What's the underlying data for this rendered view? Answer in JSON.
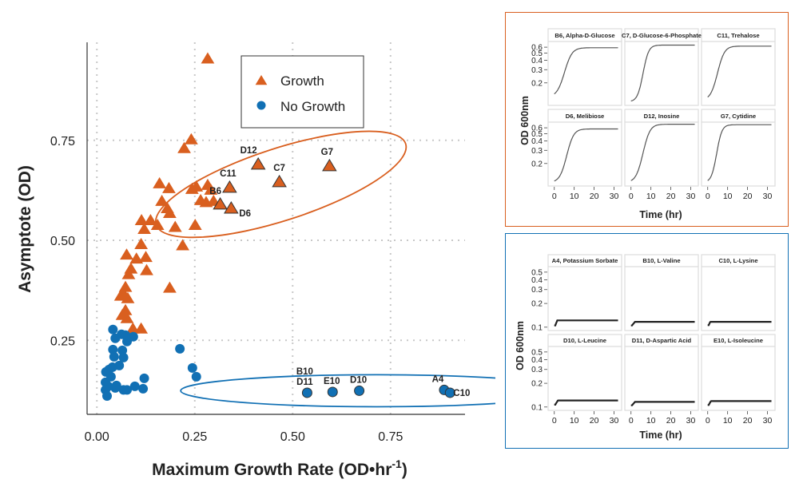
{
  "colors": {
    "growth": "#d95f1f",
    "no_growth": "#1170b4",
    "grid": "#c8c8c8",
    "axis": "#333333",
    "curve": "#555555",
    "panel_border": "#dddddd"
  },
  "chart_data": [
    {
      "type": "scatter",
      "title": "",
      "xlabel": "Maximum Growth Rate (OD•hr",
      "xlabel_superscript": "-1",
      "xlabel_suffix": ")",
      "ylabel": "Asymptote (OD)",
      "xlim": [
        -0.025,
        0.93
      ],
      "ylim": [
        0.065,
        0.995
      ],
      "xticks": [
        0.0,
        0.25,
        0.5,
        0.75
      ],
      "xtick_labels": [
        "0.00",
        "0.25",
        "0.50",
        "0.75"
      ],
      "yticks": [
        0.25,
        0.5,
        0.75
      ],
      "ytick_labels": [
        "0.25",
        "0.50",
        "0.75"
      ],
      "grid": true,
      "legend": {
        "placement": "top-center",
        "entries": [
          {
            "label": "Growth",
            "marker": "triangle",
            "series": "growth"
          },
          {
            "label": "No Growth",
            "marker": "circle",
            "series": "no_growth"
          }
        ]
      },
      "series": [
        {
          "name": "Growth",
          "key": "growth",
          "marker": "triangle",
          "points": [
            {
              "x": 0.283,
              "y": 0.954
            },
            {
              "x": 0.241,
              "y": 0.752
            },
            {
              "x": 0.223,
              "y": 0.73
            },
            {
              "x": 0.16,
              "y": 0.642
            },
            {
              "x": 0.184,
              "y": 0.63
            },
            {
              "x": 0.166,
              "y": 0.598
            },
            {
              "x": 0.18,
              "y": 0.58
            },
            {
              "x": 0.186,
              "y": 0.568
            },
            {
              "x": 0.2,
              "y": 0.533
            },
            {
              "x": 0.114,
              "y": 0.55
            },
            {
              "x": 0.137,
              "y": 0.55
            },
            {
              "x": 0.121,
              "y": 0.528
            },
            {
              "x": 0.155,
              "y": 0.538
            },
            {
              "x": 0.251,
              "y": 0.538
            },
            {
              "x": 0.219,
              "y": 0.487
            },
            {
              "x": 0.113,
              "y": 0.49
            },
            {
              "x": 0.076,
              "y": 0.464
            },
            {
              "x": 0.101,
              "y": 0.454
            },
            {
              "x": 0.125,
              "y": 0.458
            },
            {
              "x": 0.087,
              "y": 0.429
            },
            {
              "x": 0.081,
              "y": 0.415
            },
            {
              "x": 0.127,
              "y": 0.425
            },
            {
              "x": 0.186,
              "y": 0.381
            },
            {
              "x": 0.073,
              "y": 0.383
            },
            {
              "x": 0.068,
              "y": 0.367
            },
            {
              "x": 0.079,
              "y": 0.355
            },
            {
              "x": 0.061,
              "y": 0.361
            },
            {
              "x": 0.073,
              "y": 0.325
            },
            {
              "x": 0.065,
              "y": 0.313
            },
            {
              "x": 0.077,
              "y": 0.305
            },
            {
              "x": 0.092,
              "y": 0.279
            },
            {
              "x": 0.113,
              "y": 0.279
            },
            {
              "x": 0.243,
              "y": 0.628
            },
            {
              "x": 0.254,
              "y": 0.634
            },
            {
              "x": 0.283,
              "y": 0.638
            },
            {
              "x": 0.291,
              "y": 0.626
            },
            {
              "x": 0.279,
              "y": 0.595
            },
            {
              "x": 0.298,
              "y": 0.598
            },
            {
              "x": 0.265,
              "y": 0.6
            },
            {
              "x": 0.412,
              "y": 0.69,
              "label": "D12"
            },
            {
              "x": 0.594,
              "y": 0.686,
              "label": "G7"
            },
            {
              "x": 0.466,
              "y": 0.646,
              "label": "C7"
            },
            {
              "x": 0.339,
              "y": 0.632,
              "label": "C11"
            },
            {
              "x": 0.315,
              "y": 0.59,
              "label": "B6"
            },
            {
              "x": 0.343,
              "y": 0.58,
              "label": "D6"
            }
          ]
        },
        {
          "name": "No Growth",
          "key": "no_growth",
          "marker": "circle",
          "points": [
            {
              "x": 0.212,
              "y": 0.229
            },
            {
              "x": 0.244,
              "y": 0.181
            },
            {
              "x": 0.254,
              "y": 0.159
            },
            {
              "x": 0.121,
              "y": 0.155
            },
            {
              "x": 0.118,
              "y": 0.129
            },
            {
              "x": 0.097,
              "y": 0.135
            },
            {
              "x": 0.077,
              "y": 0.126
            },
            {
              "x": 0.068,
              "y": 0.126
            },
            {
              "x": 0.047,
              "y": 0.131
            },
            {
              "x": 0.041,
              "y": 0.277
            },
            {
              "x": 0.063,
              "y": 0.265
            },
            {
              "x": 0.047,
              "y": 0.255
            },
            {
              "x": 0.077,
              "y": 0.247
            },
            {
              "x": 0.093,
              "y": 0.259
            },
            {
              "x": 0.073,
              "y": 0.263
            },
            {
              "x": 0.041,
              "y": 0.227
            },
            {
              "x": 0.065,
              "y": 0.225
            },
            {
              "x": 0.044,
              "y": 0.209
            },
            {
              "x": 0.068,
              "y": 0.207
            },
            {
              "x": 0.057,
              "y": 0.187
            },
            {
              "x": 0.04,
              "y": 0.183
            },
            {
              "x": 0.023,
              "y": 0.171
            },
            {
              "x": 0.036,
              "y": 0.159
            },
            {
              "x": 0.022,
              "y": 0.145
            },
            {
              "x": 0.029,
              "y": 0.135
            },
            {
              "x": 0.022,
              "y": 0.126
            },
            {
              "x": 0.026,
              "y": 0.111
            },
            {
              "x": 0.05,
              "y": 0.137
            },
            {
              "x": 0.031,
              "y": 0.177
            },
            {
              "x": 0.537,
              "y": 0.119,
              "label": "D11",
              "label2": "B10"
            },
            {
              "x": 0.602,
              "y": 0.121,
              "label": "E10"
            },
            {
              "x": 0.67,
              "y": 0.124,
              "label": "D10"
            },
            {
              "x": 0.887,
              "y": 0.126,
              "label": "A4"
            },
            {
              "x": 0.902,
              "y": 0.119,
              "label": "C10"
            }
          ]
        }
      ],
      "annotations": [
        {
          "type": "ellipse",
          "series": "growth",
          "cx": 0.47,
          "cy": 0.64,
          "rx": 0.335,
          "ry": 0.09,
          "angle_deg": -18
        },
        {
          "type": "ellipse",
          "series": "no_growth",
          "cx": 0.714,
          "cy": 0.124,
          "rx": 0.5,
          "ry": 0.04,
          "angle_deg": 0
        }
      ]
    },
    {
      "type": "line",
      "group": "growth",
      "title": "",
      "xlabel": "Time (hr)",
      "ylabel": "OD 600nm",
      "yscale": "log",
      "xlim": [
        -1.5,
        33
      ],
      "ylim": [
        0.105,
        0.68
      ],
      "xticks": [
        0,
        10,
        20,
        30
      ],
      "yticks": [
        0.2,
        0.3,
        0.4,
        0.5,
        0.6
      ],
      "ytick_labels": [
        "0.2",
        "0.3",
        "0.4",
        "0.5",
        "0.6"
      ],
      "panels": [
        {
          "title": "B6, Alpha-D-Glucose",
          "model": "logistic",
          "start": 0.13,
          "plateau": 0.59,
          "midpoint": 6.5,
          "rate": 0.55
        },
        {
          "title": "C7, D-Glucose-6-Phosphate",
          "model": "logistic",
          "start": 0.112,
          "plateau": 0.64,
          "midpoint": 7.2,
          "rate": 0.75
        },
        {
          "title": "C11, Trehalose",
          "model": "logistic",
          "start": 0.118,
          "plateau": 0.62,
          "midpoint": 6.3,
          "rate": 0.6
        },
        {
          "title": "D6, Melibiose",
          "model": "logistic",
          "start": 0.112,
          "plateau": 0.58,
          "midpoint": 7.6,
          "rate": 0.6
        },
        {
          "title": "D12, Inosine",
          "model": "logistic",
          "start": 0.112,
          "plateau": 0.67,
          "midpoint": 7.5,
          "rate": 0.6
        },
        {
          "title": "G7, Cytidine",
          "model": "logistic",
          "start": 0.112,
          "plateau": 0.66,
          "midpoint": 5.6,
          "rate": 0.8
        }
      ]
    },
    {
      "type": "line",
      "group": "no_growth",
      "title": "",
      "xlabel": "Time (hr)",
      "ylabel": "OD 600nm",
      "yscale": "log",
      "xlim": [
        -1.5,
        33
      ],
      "ylim": [
        0.095,
        0.56
      ],
      "xticks": [
        0,
        10,
        20,
        30
      ],
      "yticks": [
        0.1,
        0.2,
        0.3,
        0.4,
        0.5
      ],
      "ytick_labels": [
        "0.1",
        "0.2",
        "0.3",
        "0.4",
        "0.5"
      ],
      "panels": [
        {
          "title": "A4, Potassium Sorbate",
          "model": "step",
          "start": 0.105,
          "plateau": 0.122,
          "rise_end": 1.5
        },
        {
          "title": "B10, L-Valine",
          "model": "step",
          "start": 0.105,
          "plateau": 0.117,
          "rise_end": 2.0
        },
        {
          "title": "C10, L-Lysine",
          "model": "step",
          "start": 0.106,
          "plateau": 0.117,
          "rise_end": 1.3
        },
        {
          "title": "D10, L-Leucine",
          "model": "step",
          "start": 0.107,
          "plateau": 0.121,
          "rise_end": 1.8
        },
        {
          "title": "D11, D-Aspartic Acid",
          "model": "step",
          "start": 0.105,
          "plateau": 0.116,
          "rise_end": 2.0
        },
        {
          "title": "E10, L-Isoleucine",
          "model": "step",
          "start": 0.106,
          "plateau": 0.119,
          "rise_end": 1.6
        }
      ]
    }
  ]
}
